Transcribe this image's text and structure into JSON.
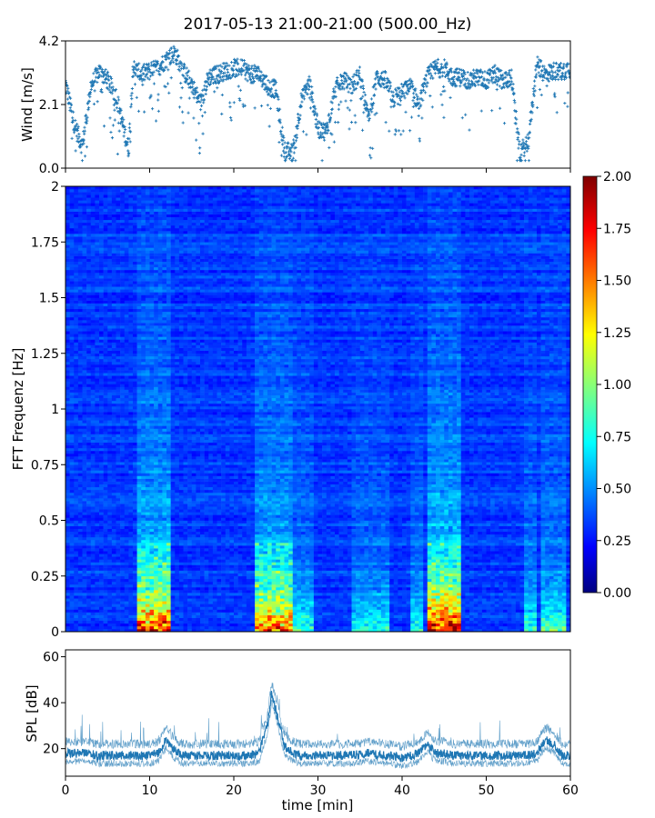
{
  "figure": {
    "title": "2017-05-13 21:00-21:00 (500.00_Hz)"
  },
  "chart_data": [
    {
      "id": "wind",
      "type": "scatter",
      "title": "",
      "xlabel": "",
      "ylabel": "Wind [m/s]",
      "xlim": [
        0,
        60
      ],
      "ylim": [
        0,
        4.2
      ],
      "yticks": [
        "0.0",
        "2.1",
        "4.2"
      ],
      "color": "#1f77b4",
      "series": [
        {
          "x": [
            0,
            1,
            2,
            3,
            4,
            5,
            6,
            7,
            7.5,
            8,
            9,
            10,
            11,
            12,
            13,
            14,
            15,
            16,
            17,
            18,
            19,
            20,
            21,
            22,
            23,
            24,
            25,
            26,
            27,
            28,
            29,
            30,
            31,
            32,
            33,
            34,
            35,
            36,
            37,
            38,
            39,
            40,
            41,
            42,
            43,
            44,
            45,
            46,
            47,
            48,
            49,
            50,
            51,
            52,
            53,
            54,
            55,
            56,
            57,
            58,
            59,
            60
          ],
          "y": [
            2.8,
            1.5,
            0.7,
            2.7,
            3.2,
            2.9,
            2.4,
            1.2,
            0.6,
            3.3,
            3.1,
            3.2,
            3.3,
            3.6,
            3.8,
            3.2,
            2.8,
            2.1,
            3.0,
            3.1,
            3.2,
            3.3,
            3.3,
            3.1,
            3.1,
            2.7,
            2.6,
            0.6,
            0.5,
            2.2,
            2.8,
            1.3,
            1.2,
            2.6,
            2.9,
            2.7,
            3.1,
            1.6,
            3.0,
            2.9,
            2.3,
            2.5,
            2.7,
            2.1,
            3.0,
            3.3,
            3.3,
            3.0,
            3.0,
            2.9,
            3.0,
            2.9,
            3.1,
            2.9,
            3.0,
            0.5,
            0.9,
            3.4,
            3.1,
            3.2,
            3.2,
            3.3
          ]
        }
      ]
    },
    {
      "id": "spectrogram",
      "type": "heatmap",
      "title": "",
      "xlabel": "",
      "ylabel": "FFT Frequenz [Hz]",
      "xlim": [
        0,
        60
      ],
      "ylim": [
        0,
        2
      ],
      "yticks": [
        "0",
        "0.25",
        "0.5",
        "0.75",
        "1",
        "1.25",
        "1.5",
        "1.75",
        "2"
      ],
      "colormap": "jet",
      "colorbar": {
        "range": [
          0,
          2
        ],
        "ticks": [
          "0.00",
          "0.25",
          "0.50",
          "0.75",
          "1.00",
          "1.25",
          "1.50",
          "1.75",
          "2.00"
        ]
      },
      "energy_bands": [
        {
          "x": [
            8.5,
            12.5
          ],
          "intensity": 0.85
        },
        {
          "x": [
            22.5,
            27.0
          ],
          "intensity": 0.75
        },
        {
          "x": [
            26.0,
            29.5
          ],
          "intensity": 0.35
        },
        {
          "x": [
            34.0,
            38.5
          ],
          "intensity": 0.3
        },
        {
          "x": [
            41.0,
            42.5
          ],
          "intensity": 0.3
        },
        {
          "x": [
            43.0,
            47.0
          ],
          "intensity": 0.95
        },
        {
          "x": [
            54.5,
            56.0
          ],
          "intensity": 0.35
        },
        {
          "x": [
            56.5,
            59.5
          ],
          "intensity": 0.4
        }
      ]
    },
    {
      "id": "spl",
      "type": "line",
      "title": "",
      "xlabel": "time [min]",
      "ylabel": "SPL [dB]",
      "xlim": [
        0,
        60
      ],
      "ylim": [
        8,
        63
      ],
      "xticks": [
        "0",
        "10",
        "20",
        "30",
        "40",
        "50",
        "60"
      ],
      "yticks": [
        "20",
        "40",
        "60"
      ],
      "color": "#1f77b4",
      "series": [
        {
          "x": [
            0,
            2,
            4,
            6,
            8,
            10,
            11,
            12,
            13,
            14,
            16,
            18,
            20,
            22,
            23,
            24,
            24.5,
            25,
            26,
            27,
            28,
            30,
            32,
            34,
            36,
            38,
            40,
            42,
            43,
            44,
            45,
            46,
            48,
            50,
            52,
            54,
            55,
            56,
            57,
            58,
            59,
            60
          ],
          "y": [
            18,
            18,
            17,
            17,
            17,
            17,
            18,
            24,
            19,
            17,
            17,
            17,
            17,
            17,
            18,
            30,
            44,
            37,
            21,
            18,
            17,
            17,
            17,
            17,
            18,
            17,
            16,
            18,
            22,
            18,
            18,
            17,
            17,
            17,
            17,
            17,
            17,
            18,
            24,
            22,
            17,
            17
          ]
        }
      ]
    }
  ]
}
